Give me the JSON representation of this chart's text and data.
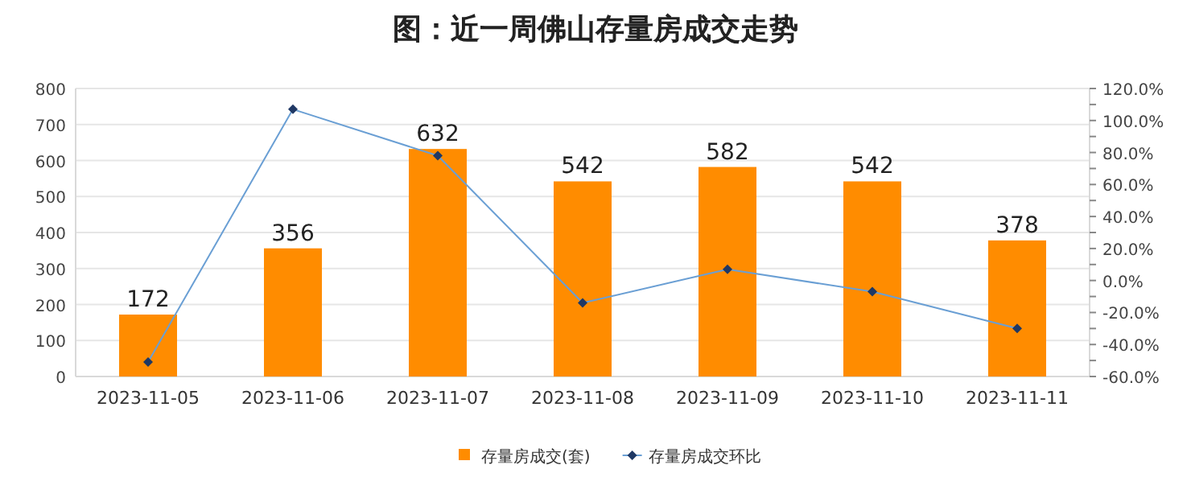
{
  "chart_data": {
    "type": "bar",
    "title": "图：近一周佛山存量房成交走势",
    "categories": [
      "2023-11-05",
      "2023-11-06",
      "2023-11-07",
      "2023-11-08",
      "2023-11-09",
      "2023-11-10",
      "2023-11-11"
    ],
    "series": [
      {
        "name": "存量房成交(套)",
        "color": "#ff8c00",
        "values": [
          172,
          356,
          632,
          542,
          582,
          542,
          378
        ],
        "value_labels": [
          "172",
          "356",
          "632",
          "542",
          "582",
          "542",
          "378"
        ]
      },
      {
        "name": "存量房成交环比",
        "type": "line",
        "axis": "y2",
        "color": "#6a9fd4",
        "marker": "diamond",
        "values": [
          -51,
          107,
          78,
          -14,
          7,
          -7,
          -30
        ]
      }
    ],
    "ylim": [
      0,
      800
    ],
    "yticks": [
      0,
      100,
      200,
      300,
      400,
      500,
      600,
      700,
      800
    ],
    "y2lim": [
      -60,
      120
    ],
    "y2ticks": [
      {
        "value": -60,
        "label": "-60.0%"
      },
      {
        "value": -50,
        "label": null
      },
      {
        "value": -40,
        "label": "-40.0%"
      },
      {
        "value": -30,
        "label": null
      },
      {
        "value": -20,
        "label": "-20.0%"
      },
      {
        "value": -10,
        "label": null
      },
      {
        "value": 0,
        "label": "0.0%"
      },
      {
        "value": 10,
        "label": null
      },
      {
        "value": 20,
        "label": "20.0%"
      },
      {
        "value": 30,
        "label": null
      },
      {
        "value": 40,
        "label": "40.0%"
      },
      {
        "value": 50,
        "label": null
      },
      {
        "value": 60,
        "label": "60.0%"
      },
      {
        "value": 70,
        "label": null
      },
      {
        "value": 80,
        "label": "80.0%"
      },
      {
        "value": 90,
        "label": null
      },
      {
        "value": 100,
        "label": "100.0%"
      },
      {
        "value": 110,
        "label": null
      },
      {
        "value": 120,
        "label": "120.0%"
      }
    ],
    "grid": "y",
    "legend": "bottom"
  }
}
